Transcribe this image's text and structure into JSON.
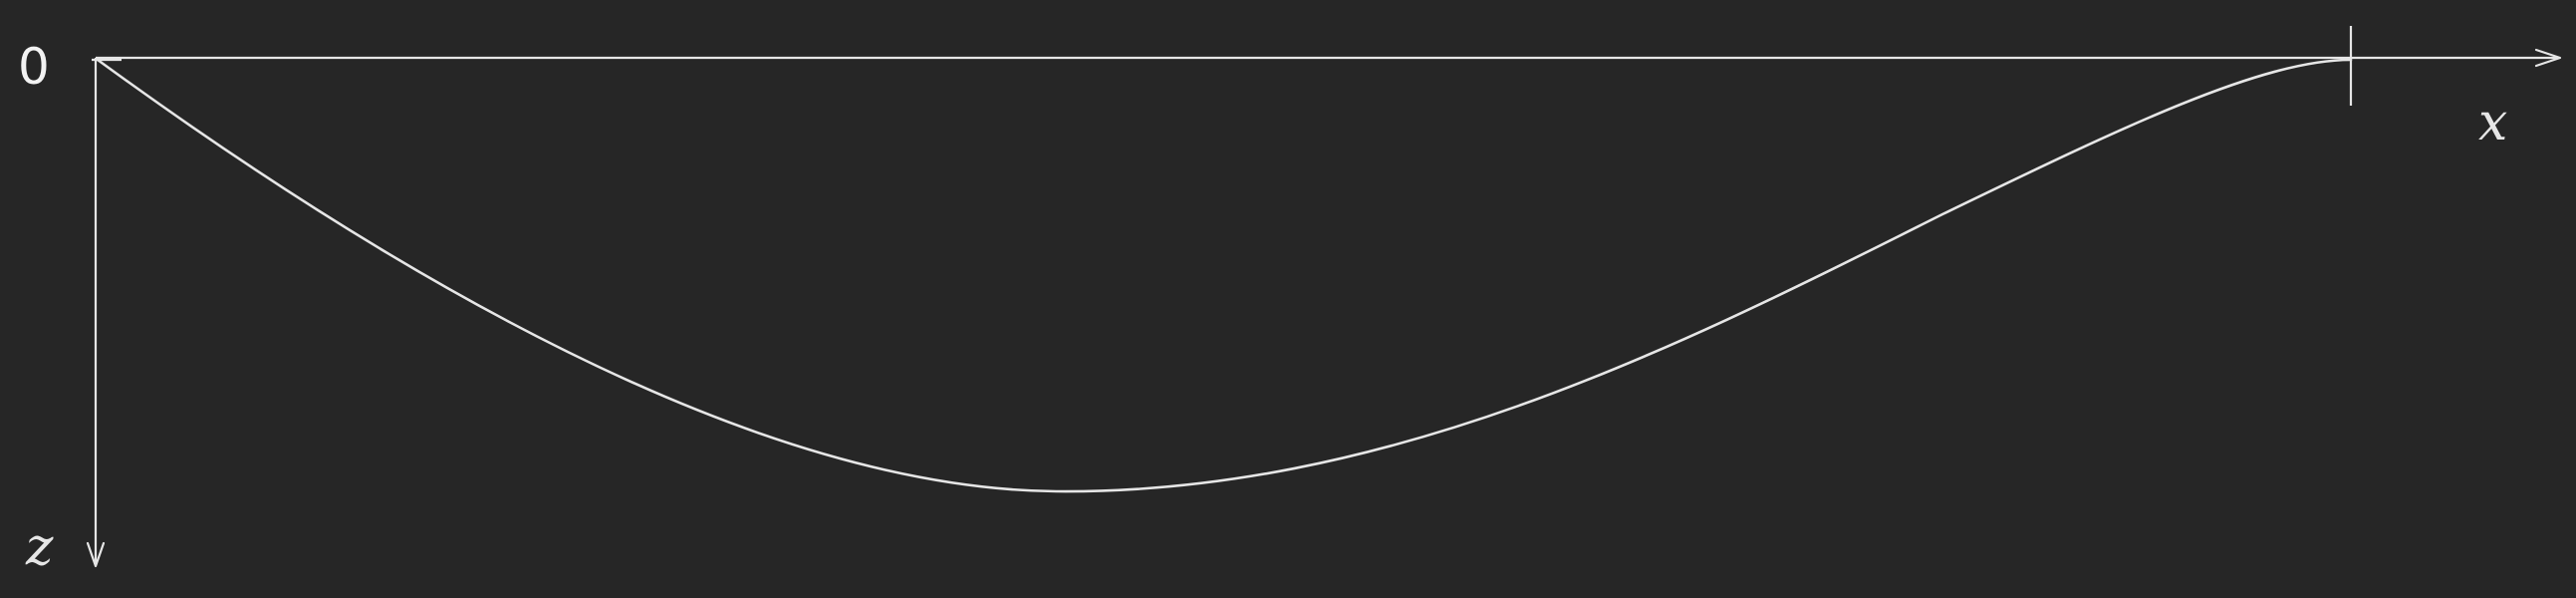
{
  "diagram": {
    "origin_label": "0",
    "x_axis_label": "x",
    "z_axis_label": "z",
    "colors": {
      "background": "#262626",
      "stroke": "#e6e6e6"
    }
  }
}
